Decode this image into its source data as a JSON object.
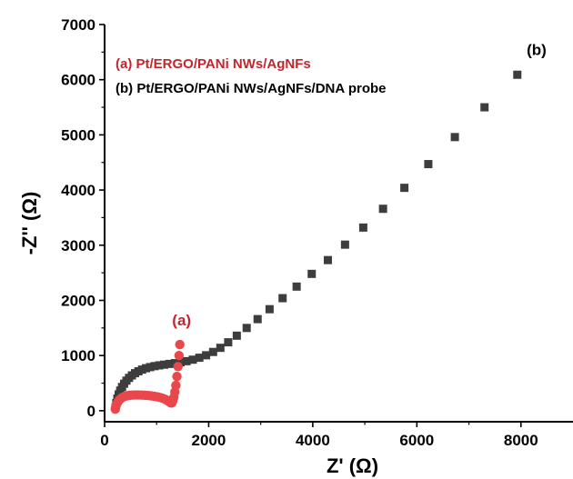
{
  "chart_data": {
    "type": "scatter",
    "xlabel": "Z' (Ω)",
    "ylabel": "-Z'' (Ω)",
    "xlim": [
      0,
      9000
    ],
    "ylim": [
      -200,
      7000
    ],
    "x_ticks": [
      0,
      2000,
      4000,
      6000,
      8000
    ],
    "y_ticks": [
      0,
      1000,
      2000,
      3000,
      4000,
      5000,
      6000,
      7000
    ],
    "x_tick_labels": [
      "0",
      "2000",
      "4000",
      "6000",
      "8000"
    ],
    "y_tick_labels": [
      "0",
      "1000",
      "2000",
      "3000",
      "4000",
      "5000",
      "6000",
      "7000"
    ],
    "grid": false,
    "legend_position": "top-left",
    "series": [
      {
        "name": "(a) Pt/ERGO/PANi NWs/AgNFs",
        "label": "(a)",
        "marker": "circle",
        "color": "#e8474b",
        "text_color": "#c0272d",
        "x": [
          205,
          215,
          230,
          250,
          275,
          305,
          340,
          380,
          425,
          475,
          530,
          590,
          650,
          710,
          770,
          830,
          890,
          950,
          1010,
          1065,
          1115,
          1160,
          1200,
          1235,
          1265,
          1290,
          1310,
          1330,
          1350,
          1370,
          1390,
          1410,
          1430,
          1445
        ],
        "y": [
          30,
          70,
          110,
          150,
          185,
          215,
          240,
          258,
          270,
          278,
          283,
          285,
          285,
          283,
          280,
          276,
          270,
          262,
          252,
          240,
          226,
          208,
          188,
          166,
          145,
          140,
          175,
          240,
          340,
          460,
          620,
          800,
          1000,
          1200
        ]
      },
      {
        "name": "(b) Pt/ERGO/PANi NWs/AgNFs/DNA probe",
        "label": "(b)",
        "marker": "square",
        "color": "#3d3d3d",
        "text_color": "#000000",
        "x": [
          210,
          225,
          245,
          270,
          300,
          335,
          375,
          420,
          470,
          525,
          585,
          650,
          720,
          795,
          875,
          960,
          1050,
          1145,
          1245,
          1350,
          1460,
          1575,
          1695,
          1820,
          1950,
          2085,
          2225,
          2375,
          2540,
          2730,
          2940,
          3170,
          3420,
          3690,
          3980,
          4290,
          4620,
          4970,
          5350,
          5760,
          6220,
          6730,
          7300,
          7930
        ],
        "y": [
          60,
          140,
          220,
          295,
          365,
          430,
          490,
          545,
          595,
          640,
          680,
          715,
          745,
          770,
          790,
          808,
          822,
          835,
          848,
          862,
          878,
          898,
          925,
          960,
          1005,
          1065,
          1140,
          1240,
          1360,
          1500,
          1660,
          1840,
          2040,
          2250,
          2480,
          2730,
          3010,
          3320,
          3660,
          4040,
          4470,
          4960,
          5500,
          6090
        ]
      }
    ],
    "annotations": [
      {
        "text": "(a)",
        "x": 1480,
        "y": 1550,
        "series": 0
      },
      {
        "text": "(b)",
        "x": 8300,
        "y": 6450,
        "series": 1
      }
    ]
  }
}
